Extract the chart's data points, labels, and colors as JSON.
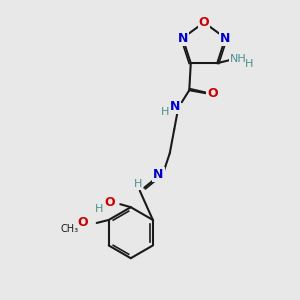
{
  "bg_color": "#e8e8e8",
  "black": "#1a1a1a",
  "blue": "#0000cc",
  "red": "#cc0000",
  "teal": "#4a9090",
  "lw": 1.5,
  "lw_double": 1.2,
  "fs_large": 9,
  "fs_small": 8,
  "xlim": [
    0,
    10
  ],
  "ylim": [
    0,
    10
  ]
}
